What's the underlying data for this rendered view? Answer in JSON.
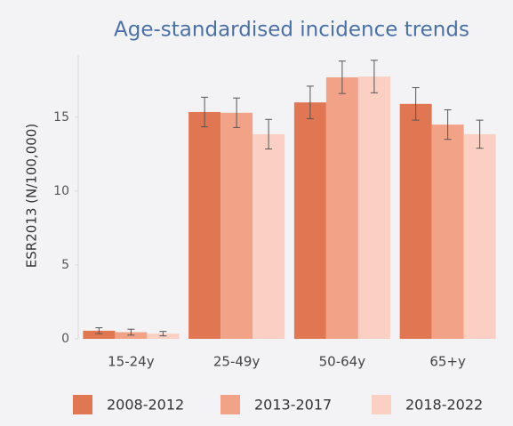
{
  "chart_data": {
    "type": "bar",
    "title": "Age-standardised incidence trends",
    "ylabel": "ESR2013 (N/100,000)",
    "categories": [
      "15-24y",
      "25-49y",
      "50-64y",
      "65+y"
    ],
    "series": [
      {
        "name": "2008-2012",
        "color": "#e07652",
        "values": [
          0.55,
          15.35,
          16.0,
          15.9
        ],
        "errors": [
          0.2,
          1.0,
          1.1,
          1.1
        ]
      },
      {
        "name": "2013-2017",
        "color": "#f2a287",
        "values": [
          0.45,
          15.3,
          17.7,
          14.5
        ],
        "errors": [
          0.2,
          1.0,
          1.1,
          1.0
        ]
      },
      {
        "name": "2018-2022",
        "color": "#fbd0c2",
        "values": [
          0.35,
          13.85,
          17.75,
          13.85
        ],
        "errors": [
          0.15,
          1.0,
          1.1,
          0.95
        ]
      }
    ],
    "ylim": [
      0,
      19.2
    ],
    "yticks": [
      0,
      5,
      10,
      15
    ],
    "grid": false,
    "legend": "bottom"
  }
}
